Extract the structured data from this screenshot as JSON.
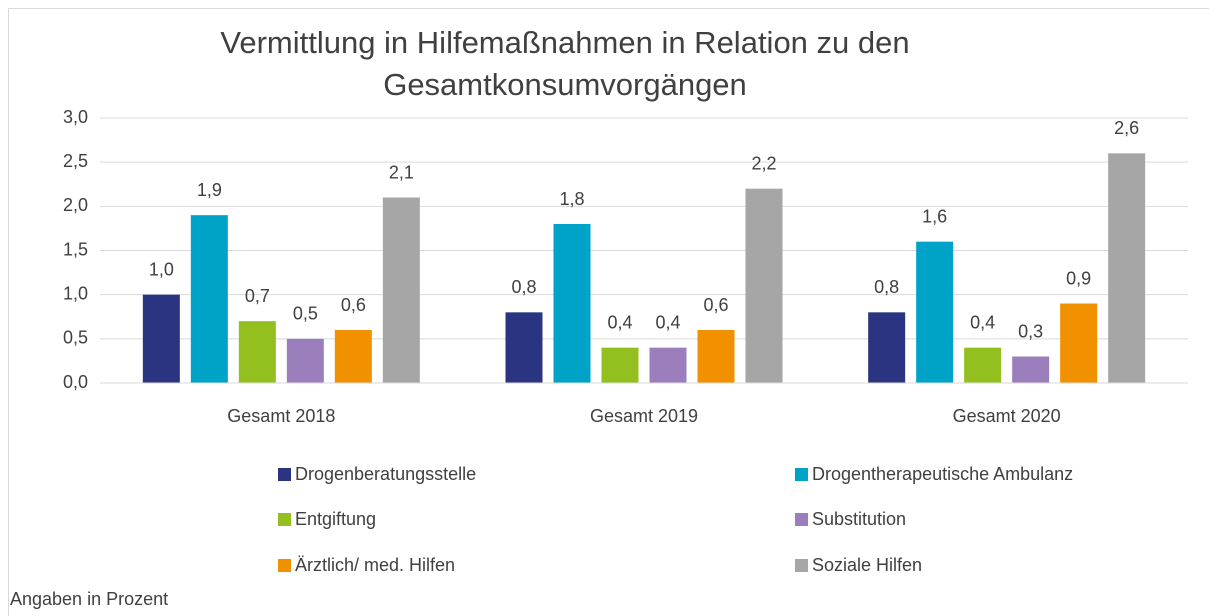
{
  "chart_data": {
    "type": "bar",
    "title": "Vermittlung in Hilfemaßnahmen in Relation zu den Gesamtkonsumvorgängen",
    "annotation": "Angaben in Prozent",
    "categories": [
      "Gesamt 2018",
      "Gesamt 2019",
      "Gesamt 2020"
    ],
    "series": [
      {
        "name": "Drogenberatungsstelle",
        "color": "#2a3480",
        "values": [
          1.0,
          0.8,
          0.8
        ],
        "value_labels": [
          "1,0",
          "0,8",
          "0,8"
        ]
      },
      {
        "name": "Drogentherapeutische Ambulanz",
        "color": "#00a3c8",
        "values": [
          1.9,
          1.8,
          1.6
        ],
        "value_labels": [
          "1,9",
          "1,8",
          "1,6"
        ]
      },
      {
        "name": "Entgiftung",
        "color": "#93c01f",
        "values": [
          0.7,
          0.4,
          0.4
        ],
        "value_labels": [
          "0,7",
          "0,4",
          "0,4"
        ]
      },
      {
        "name": "Substitution",
        "color": "#9b7fbd",
        "values": [
          0.5,
          0.4,
          0.3
        ],
        "value_labels": [
          "0,5",
          "0,4",
          "0,3"
        ]
      },
      {
        "name": "Ärztlich/ med. Hilfen",
        "color": "#f29100",
        "values": [
          0.6,
          0.6,
          0.9
        ],
        "value_labels": [
          "0,6",
          "0,6",
          "0,9"
        ]
      },
      {
        "name": "Soziale Hilfen",
        "color": "#a6a6a6",
        "values": [
          2.1,
          2.2,
          2.6
        ],
        "value_labels": [
          "2,1",
          "2,2",
          "2,6"
        ]
      }
    ],
    "ylim": [
      0,
      3
    ],
    "yticks": [
      {
        "value": 0,
        "label": "0,0"
      },
      {
        "value": 0.5,
        "label": "0,5"
      },
      {
        "value": 1,
        "label": "1,0"
      },
      {
        "value": 1.5,
        "label": "1,5"
      },
      {
        "value": 2,
        "label": "2,0"
      },
      {
        "value": 2.5,
        "label": "2,5"
      },
      {
        "value": 3,
        "label": "3,0"
      }
    ],
    "grid": true,
    "legend": "bottom"
  }
}
